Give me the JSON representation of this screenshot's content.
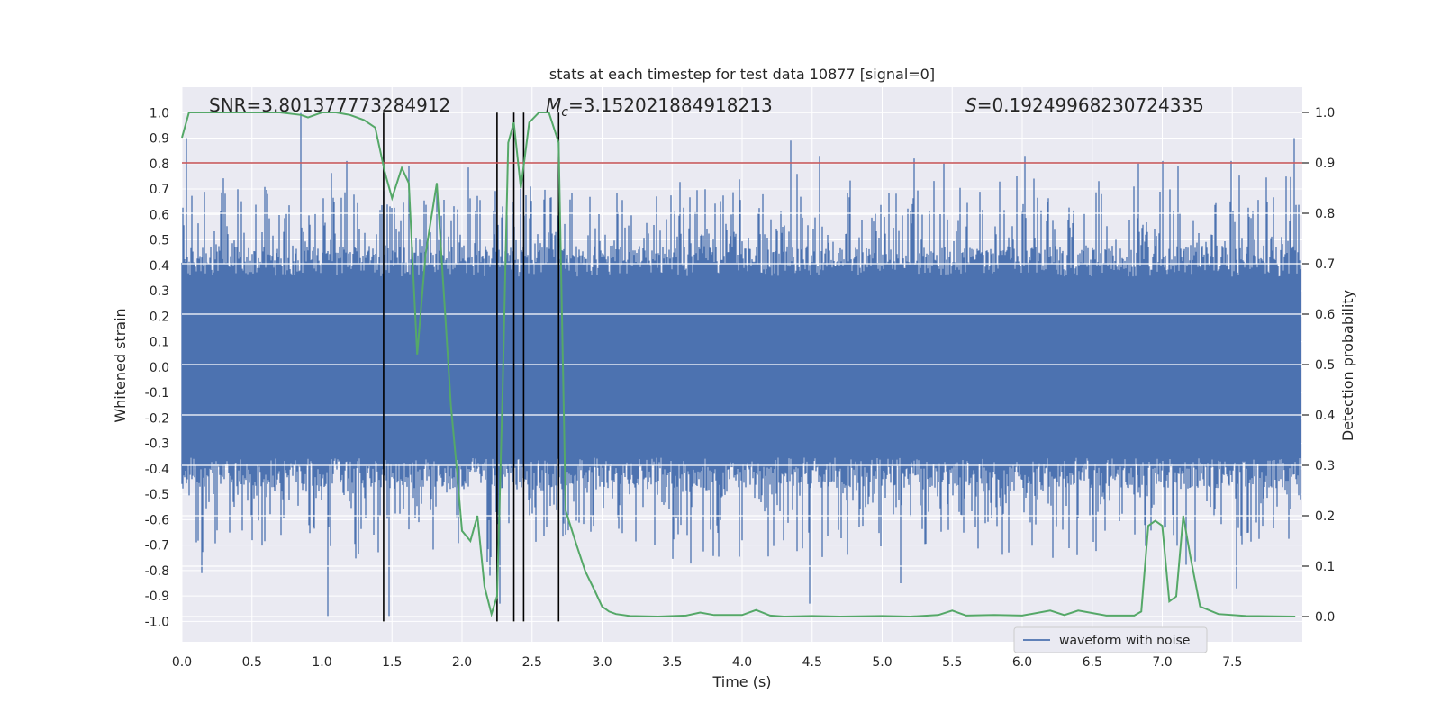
{
  "chart_data": {
    "type": "line",
    "title": "stats at each timestep for test data 10877 [signal=0]",
    "xlabel": "Time (s)",
    "ylabel_left": "Whitened strain",
    "ylabel_right": "Detection probability",
    "xlim": [
      0.0,
      8.0
    ],
    "ylim_left": [
      -1.08,
      1.1
    ],
    "ylim_right": [
      -0.05,
      1.05
    ],
    "xticks": [
      "0.0",
      "0.5",
      "1.0",
      "1.5",
      "2.0",
      "2.5",
      "3.0",
      "3.5",
      "4.0",
      "4.5",
      "5.0",
      "5.5",
      "6.0",
      "6.5",
      "7.0",
      "7.5"
    ],
    "yticks_left": [
      "1.0",
      "0.9",
      "0.8",
      "0.7",
      "0.6",
      "0.5",
      "0.4",
      "0.3",
      "0.2",
      "0.1",
      "0.0",
      "-0.1",
      "-0.2",
      "-0.3",
      "-0.4",
      "-0.5",
      "-0.6",
      "-0.7",
      "-0.8",
      "-0.9",
      "-1.0"
    ],
    "yticks_right": [
      "1.0",
      "0.9",
      "0.8",
      "0.7",
      "0.6",
      "0.5",
      "0.4",
      "0.3",
      "0.2",
      "0.1",
      "0.0"
    ],
    "annotations": {
      "snr": "SNR=3.801377773284912",
      "mc_symbol": "M",
      "mc_sub": "c",
      "mc_value": "=3.152021884918213",
      "s_symbol": "S",
      "s_value": "=0.19249968230724335"
    },
    "legend": [
      {
        "label": "waveform with noise",
        "color": "#4c72b0"
      }
    ],
    "legend_position": "lower-right",
    "threshold": {
      "value": 0.9,
      "axis": "right",
      "color": "#c44e52"
    },
    "vertical_lines_x": [
      1.44,
      2.25,
      2.37,
      2.44,
      2.69
    ],
    "waveform": {
      "name": "waveform with noise",
      "color": "#4c72b0",
      "t_start": 0.0,
      "t_end": 7.99,
      "envelope_upper": 0.38,
      "envelope_lower": -0.38,
      "peaks": [
        {
          "t": 0.03,
          "v": 0.9
        },
        {
          "t": 0.85,
          "v": 1.0
        },
        {
          "t": 1.18,
          "v": 0.81
        },
        {
          "t": 1.62,
          "v": 0.79
        },
        {
          "t": 1.82,
          "v": 0.72
        },
        {
          "t": 4.35,
          "v": 0.89
        },
        {
          "t": 4.55,
          "v": 0.83
        },
        {
          "t": 5.23,
          "v": 0.82
        },
        {
          "t": 5.44,
          "v": 0.8
        },
        {
          "t": 6.02,
          "v": 0.83
        },
        {
          "t": 6.83,
          "v": 0.8
        },
        {
          "t": 7.0,
          "v": 0.81
        },
        {
          "t": 7.11,
          "v": 0.79
        },
        {
          "t": 7.49,
          "v": 0.81
        },
        {
          "t": 7.94,
          "v": 0.9
        },
        {
          "t": 1.04,
          "v": -0.98
        },
        {
          "t": 1.48,
          "v": -0.98
        },
        {
          "t": 2.27,
          "v": -0.93
        },
        {
          "t": 4.48,
          "v": -0.93
        },
        {
          "t": 5.13,
          "v": -0.85
        },
        {
          "t": 7.53,
          "v": -0.87
        },
        {
          "t": 0.14,
          "v": -0.81
        },
        {
          "t": 2.2,
          "v": -0.82
        }
      ]
    },
    "series": [
      {
        "name": "detection probability",
        "color": "#55a868",
        "axis": "right",
        "x": [
          0.0,
          0.05,
          0.1,
          0.2,
          0.3,
          0.5,
          0.7,
          0.85,
          0.9,
          1.0,
          1.1,
          1.2,
          1.3,
          1.38,
          1.45,
          1.5,
          1.57,
          1.62,
          1.68,
          1.74,
          1.82,
          1.88,
          1.92,
          1.96,
          2.0,
          2.06,
          2.11,
          2.16,
          2.21,
          2.25,
          2.29,
          2.33,
          2.37,
          2.42,
          2.48,
          2.55,
          2.62,
          2.69,
          2.74,
          2.82,
          2.88,
          2.95,
          3.0,
          3.05,
          3.1,
          3.2,
          3.4,
          3.6,
          3.7,
          3.8,
          4.0,
          4.1,
          4.2,
          4.3,
          4.5,
          4.7,
          5.0,
          5.2,
          5.4,
          5.5,
          5.6,
          5.8,
          6.0,
          6.2,
          6.3,
          6.4,
          6.6,
          6.8,
          6.85,
          6.9,
          6.95,
          7.0,
          7.05,
          7.1,
          7.15,
          7.2,
          7.27,
          7.4,
          7.6,
          7.95
        ],
        "values": [
          0.95,
          1.0,
          1.0,
          1.0,
          1.0,
          1.0,
          1.0,
          0.995,
          0.99,
          1.0,
          1.0,
          0.995,
          0.985,
          0.97,
          0.88,
          0.83,
          0.89,
          0.86,
          0.52,
          0.72,
          0.86,
          0.6,
          0.42,
          0.3,
          0.17,
          0.15,
          0.2,
          0.06,
          0.005,
          0.04,
          0.45,
          0.94,
          0.98,
          0.85,
          0.98,
          1.0,
          1.0,
          0.94,
          0.21,
          0.14,
          0.09,
          0.05,
          0.02,
          0.01,
          0.005,
          0.001,
          0.0,
          0.002,
          0.008,
          0.003,
          0.003,
          0.013,
          0.002,
          0.0,
          0.001,
          0.0,
          0.001,
          0.0,
          0.003,
          0.012,
          0.002,
          0.003,
          0.002,
          0.012,
          0.003,
          0.012,
          0.002,
          0.002,
          0.01,
          0.18,
          0.19,
          0.18,
          0.03,
          0.04,
          0.2,
          0.12,
          0.02,
          0.005,
          0.001,
          0.0
        ]
      }
    ]
  }
}
